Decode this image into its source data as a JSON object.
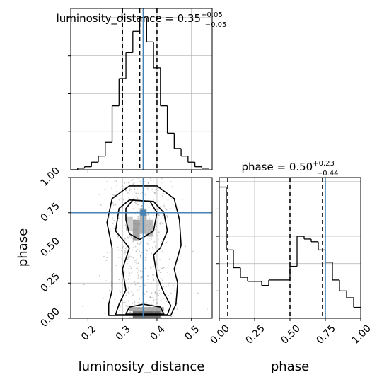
{
  "chart_data": [
    {
      "type": "histogram",
      "parameter": "luminosity_distance",
      "title": {
        "text": "luminosity_distance = 0.35",
        "sup": "+0.05",
        "sub": "−0.05"
      },
      "xlim": [
        0.15,
        0.56
      ],
      "x_ticks": [
        0.2,
        0.3,
        0.4,
        0.5
      ],
      "quantile_lines": [
        0.3,
        0.35,
        0.4
      ],
      "truth": 0.36,
      "grid": true,
      "bins": {
        "edges": [
          0.15,
          0.17,
          0.19,
          0.21,
          0.23,
          0.25,
          0.27,
          0.29,
          0.31,
          0.33,
          0.35,
          0.37,
          0.39,
          0.41,
          0.43,
          0.45,
          0.47,
          0.49,
          0.51,
          0.53,
          0.55
        ],
        "heights": [
          0.0,
          0.01,
          0.02,
          0.05,
          0.09,
          0.18,
          0.42,
          0.6,
          0.77,
          0.91,
          1.0,
          0.84,
          0.67,
          0.42,
          0.24,
          0.14,
          0.09,
          0.05,
          0.02,
          0.01
        ]
      }
    },
    {
      "type": "heatmap",
      "x_parameter": "luminosity_distance",
      "y_parameter": "phase",
      "xlabel": "luminosity_distance",
      "ylabel": "phase",
      "xlim": [
        0.15,
        0.56
      ],
      "ylim": [
        0.0,
        1.0
      ],
      "x_ticks": [
        0.2,
        0.3,
        0.4,
        0.5
      ],
      "y_ticks": [
        0.0,
        0.25,
        0.5,
        0.75,
        1.0
      ],
      "truth": {
        "x": 0.36,
        "y": 0.75
      },
      "grid": true,
      "contours": [
        {
          "level": "outer",
          "points": [
            [
              0.26,
              0.02
            ],
            [
              0.44,
              0.02
            ],
            [
              0.455,
              0.1
            ],
            [
              0.46,
              0.25
            ],
            [
              0.45,
              0.35
            ],
            [
              0.47,
              0.52
            ],
            [
              0.465,
              0.7
            ],
            [
              0.45,
              0.85
            ],
            [
              0.4,
              0.94
            ],
            [
              0.32,
              0.94
            ],
            [
              0.27,
              0.85
            ],
            [
              0.255,
              0.68
            ],
            [
              0.27,
              0.5
            ],
            [
              0.27,
              0.35
            ],
            [
              0.27,
              0.2
            ],
            [
              0.26,
              0.1
            ]
          ]
        },
        {
          "level": "middle",
          "points": [
            [
              0.28,
              0.025
            ],
            [
              0.43,
              0.025
            ],
            [
              0.44,
              0.09
            ],
            [
              0.42,
              0.18
            ],
            [
              0.4,
              0.3
            ],
            [
              0.39,
              0.45
            ],
            [
              0.41,
              0.5
            ],
            [
              0.43,
              0.62
            ],
            [
              0.42,
              0.75
            ],
            [
              0.39,
              0.83
            ],
            [
              0.32,
              0.84
            ],
            [
              0.29,
              0.78
            ],
            [
              0.28,
              0.62
            ],
            [
              0.32,
              0.5
            ],
            [
              0.3,
              0.35
            ],
            [
              0.31,
              0.2
            ],
            [
              0.29,
              0.1
            ]
          ]
        },
        {
          "level": "inner",
          "points": [
            [
              0.31,
              0.03
            ],
            [
              0.42,
              0.03
            ],
            [
              0.41,
              0.08
            ],
            [
              0.36,
              0.1
            ],
            [
              0.32,
              0.08
            ]
          ]
        },
        {
          "level": "core-upper",
          "points": [
            [
              0.31,
              0.78
            ],
            [
              0.33,
              0.84
            ],
            [
              0.38,
              0.83
            ],
            [
              0.4,
              0.75
            ],
            [
              0.39,
              0.62
            ],
            [
              0.35,
              0.56
            ],
            [
              0.32,
              0.6
            ],
            [
              0.31,
              0.7
            ]
          ]
        }
      ],
      "density_blocks": [
        {
          "x": [
            0.33,
            0.35
          ],
          "y": [
            0.55,
            0.7
          ],
          "density": 0.55
        },
        {
          "x": [
            0.35,
            0.37
          ],
          "y": [
            0.6,
            0.78
          ],
          "density": 0.45
        },
        {
          "x": [
            0.37,
            0.39
          ],
          "y": [
            0.58,
            0.7
          ],
          "density": 0.4
        },
        {
          "x": [
            0.31,
            0.33
          ],
          "y": [
            0.62,
            0.72
          ],
          "density": 0.3
        },
        {
          "x": [
            0.33,
            0.41
          ],
          "y": [
            0.0,
            0.05
          ],
          "density": 0.85
        },
        {
          "x": [
            0.32,
            0.42
          ],
          "y": [
            0.05,
            0.08
          ],
          "density": 0.5
        }
      ]
    },
    {
      "type": "histogram",
      "parameter": "phase",
      "title": {
        "text": "phase = 0.50",
        "sup": "+0.23",
        "sub": "−0.44"
      },
      "xlabel": "phase",
      "xlim": [
        0.0,
        1.0
      ],
      "x_ticks": [
        0.0,
        0.25,
        0.5,
        0.75,
        1.0
      ],
      "quantile_lines": [
        0.06,
        0.5,
        0.73
      ],
      "truth": 0.75,
      "grid": true,
      "bins": {
        "edges": [
          0.0,
          0.05,
          0.1,
          0.15,
          0.2,
          0.25,
          0.3,
          0.35,
          0.4,
          0.45,
          0.5,
          0.55,
          0.6,
          0.65,
          0.7,
          0.75,
          0.8,
          0.85,
          0.9,
          0.95,
          1.0
        ],
        "heights": [
          0.96,
          0.5,
          0.37,
          0.3,
          0.27,
          0.27,
          0.24,
          0.28,
          0.28,
          0.28,
          0.38,
          0.6,
          0.58,
          0.56,
          0.5,
          0.41,
          0.28,
          0.2,
          0.15,
          0.08
        ]
      }
    }
  ],
  "colors": {
    "line": "#000000",
    "truth": "#4682b4",
    "grid": "#b0b0b0",
    "point": "#9a9a9a"
  }
}
